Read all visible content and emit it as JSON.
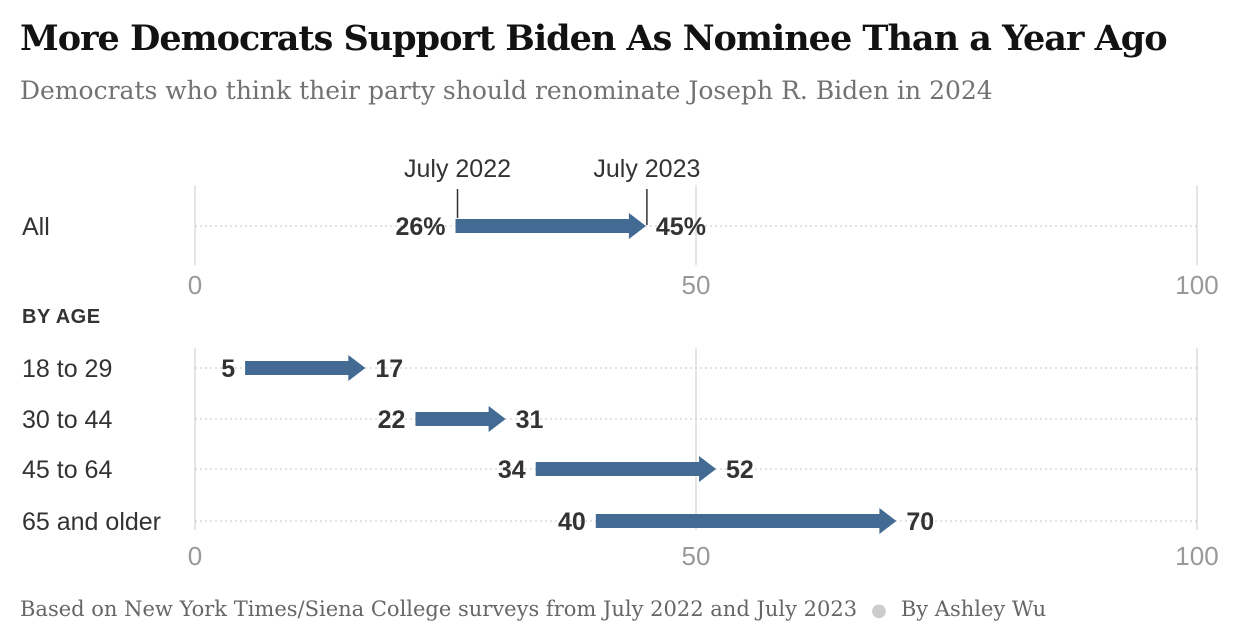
{
  "title": "More Democrats Support Biden As Nominee Than a Year Ago",
  "subtitle": "Democrats who think their party should renominate Joseph R. Biden in 2024",
  "footer": {
    "source": "Based on New York Times/Siena College surveys from July 2022 and July 2023",
    "byline": "By Ashley Wu"
  },
  "colors": {
    "arrow": "#436a93",
    "text": "#333333",
    "grid": "#dcdcdc",
    "tick": "#999999"
  },
  "chart_data": [
    {
      "type": "arrow",
      "start_label": "July 2022",
      "end_label": "July 2023",
      "xlim": [
        0,
        100
      ],
      "ticks": [
        "0",
        "50",
        "100"
      ],
      "rows": [
        {
          "label": "All",
          "start": 26,
          "end": 45,
          "start_text": "26%",
          "end_text": "45%"
        }
      ]
    },
    {
      "type": "arrow",
      "section_label": "BY AGE",
      "xlim": [
        0,
        100
      ],
      "ticks": [
        "0",
        "50",
        "100"
      ],
      "rows": [
        {
          "label": "18 to 29",
          "start": 5,
          "end": 17,
          "start_text": "5",
          "end_text": "17"
        },
        {
          "label": "30 to 44",
          "start": 22,
          "end": 31,
          "start_text": "22",
          "end_text": "31"
        },
        {
          "label": "45 to 64",
          "start": 34,
          "end": 52,
          "start_text": "34",
          "end_text": "52"
        },
        {
          "label": "65 and older",
          "start": 40,
          "end": 70,
          "start_text": "40",
          "end_text": "70"
        }
      ]
    }
  ]
}
